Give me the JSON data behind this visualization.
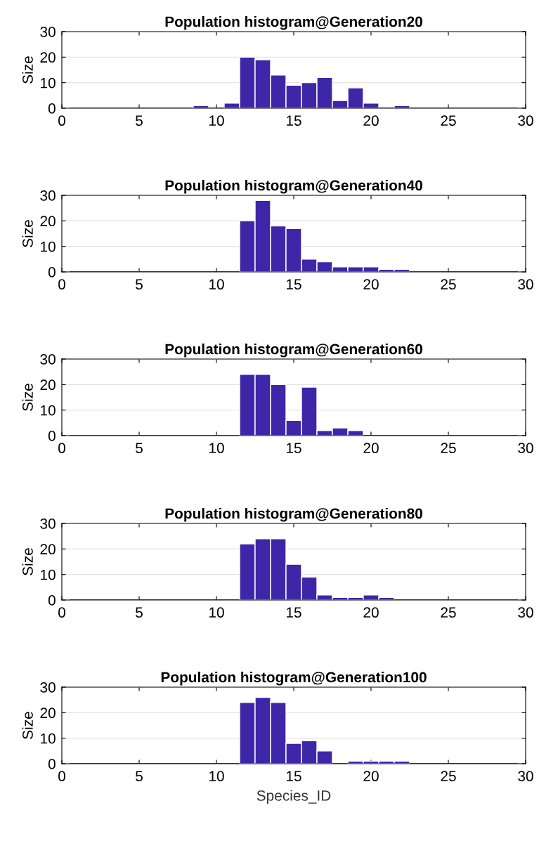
{
  "chart_data": [
    {
      "type": "histogram",
      "title": "Population histogram@Generation20",
      "ylabel": "Size",
      "color": "#3d27a8",
      "bins": [
        0.5,
        1.5,
        2.5,
        3.5,
        4.5,
        5.5,
        6.5,
        7.5,
        8.5,
        9.5,
        10.5,
        11.5,
        12.5,
        13.5,
        14.5,
        15.5,
        16.5,
        17.5,
        18.5,
        19.5,
        20.5,
        21.5,
        22.5,
        23.5,
        24.5,
        25.5,
        26.5,
        27.5,
        28.5,
        29.5
      ],
      "values": [
        0,
        0,
        0,
        0,
        0,
        0,
        0,
        0,
        1,
        0,
        2,
        20,
        19,
        13,
        9,
        10,
        12,
        3,
        8,
        2,
        0,
        1,
        0,
        0,
        0,
        0,
        0,
        0,
        0
      ],
      "xlim": [
        0,
        30
      ],
      "xticks": [
        0,
        5,
        10,
        15,
        20,
        25,
        30
      ],
      "ylim": [
        0,
        30
      ],
      "yticks": [
        0,
        10,
        20,
        30
      ],
      "grid": "y"
    },
    {
      "type": "histogram",
      "title": "Population histogram@Generation40",
      "ylabel": "Size",
      "color": "#3d27a8",
      "bins": [
        0.5,
        1.5,
        2.5,
        3.5,
        4.5,
        5.5,
        6.5,
        7.5,
        8.5,
        9.5,
        10.5,
        11.5,
        12.5,
        13.5,
        14.5,
        15.5,
        16.5,
        17.5,
        18.5,
        19.5,
        20.5,
        21.5,
        22.5,
        23.5,
        24.5,
        25.5,
        26.5,
        27.5,
        28.5,
        29.5
      ],
      "values": [
        0,
        0,
        0,
        0,
        0,
        0,
        0,
        0,
        0,
        0,
        0,
        20,
        28,
        18,
        17,
        5,
        4,
        2,
        2,
        2,
        1,
        1,
        0,
        0,
        0,
        0,
        0,
        0,
        0
      ],
      "xlim": [
        0,
        30
      ],
      "xticks": [
        0,
        5,
        10,
        15,
        20,
        25,
        30
      ],
      "ylim": [
        0,
        30
      ],
      "yticks": [
        0,
        10,
        20,
        30
      ],
      "grid": "y"
    },
    {
      "type": "histogram",
      "title": "Population histogram@Generation60",
      "ylabel": "Size",
      "color": "#3d27a8",
      "bins": [
        0.5,
        1.5,
        2.5,
        3.5,
        4.5,
        5.5,
        6.5,
        7.5,
        8.5,
        9.5,
        10.5,
        11.5,
        12.5,
        13.5,
        14.5,
        15.5,
        16.5,
        17.5,
        18.5,
        19.5,
        20.5,
        21.5,
        22.5,
        23.5,
        24.5,
        25.5,
        26.5,
        27.5,
        28.5,
        29.5
      ],
      "values": [
        0,
        0,
        0,
        0,
        0,
        0,
        0,
        0,
        0,
        0,
        0,
        24,
        24,
        20,
        6,
        19,
        2,
        3,
        2,
        0,
        0,
        0,
        0,
        0,
        0,
        0,
        0,
        0,
        0
      ],
      "xlim": [
        0,
        30
      ],
      "xticks": [
        0,
        5,
        10,
        15,
        20,
        25,
        30
      ],
      "ylim": [
        0,
        30
      ],
      "yticks": [
        0,
        10,
        20,
        30
      ],
      "grid": "y"
    },
    {
      "type": "histogram",
      "title": "Population histogram@Generation80",
      "ylabel": "Size",
      "color": "#3d27a8",
      "bins": [
        0.5,
        1.5,
        2.5,
        3.5,
        4.5,
        5.5,
        6.5,
        7.5,
        8.5,
        9.5,
        10.5,
        11.5,
        12.5,
        13.5,
        14.5,
        15.5,
        16.5,
        17.5,
        18.5,
        19.5,
        20.5,
        21.5,
        22.5,
        23.5,
        24.5,
        25.5,
        26.5,
        27.5,
        28.5,
        29.5
      ],
      "values": [
        0,
        0,
        0,
        0,
        0,
        0,
        0,
        0,
        0,
        0,
        0,
        22,
        24,
        24,
        14,
        9,
        2,
        1,
        1,
        2,
        1,
        0,
        0,
        0,
        0,
        0,
        0,
        0,
        0
      ],
      "xlim": [
        0,
        30
      ],
      "xticks": [
        0,
        5,
        10,
        15,
        20,
        25,
        30
      ],
      "ylim": [
        0,
        30
      ],
      "yticks": [
        0,
        10,
        20,
        30
      ],
      "grid": "y"
    },
    {
      "type": "histogram",
      "title": "Population histogram@Generation100",
      "ylabel": "Size",
      "xlabel": "Species_ID",
      "color": "#3d27a8",
      "bins": [
        0.5,
        1.5,
        2.5,
        3.5,
        4.5,
        5.5,
        6.5,
        7.5,
        8.5,
        9.5,
        10.5,
        11.5,
        12.5,
        13.5,
        14.5,
        15.5,
        16.5,
        17.5,
        18.5,
        19.5,
        20.5,
        21.5,
        22.5,
        23.5,
        24.5,
        25.5,
        26.5,
        27.5,
        28.5,
        29.5
      ],
      "values": [
        0,
        0,
        0,
        0,
        0,
        0,
        0,
        0,
        0,
        0,
        0,
        24,
        26,
        24,
        8,
        9,
        5,
        0,
        1,
        1,
        1,
        1,
        0,
        0,
        0,
        0,
        0,
        0,
        0
      ],
      "xlim": [
        0,
        30
      ],
      "xticks": [
        0,
        5,
        10,
        15,
        20,
        25,
        30
      ],
      "ylim": [
        0,
        30
      ],
      "yticks": [
        0,
        10,
        20,
        30
      ],
      "grid": "y"
    }
  ]
}
